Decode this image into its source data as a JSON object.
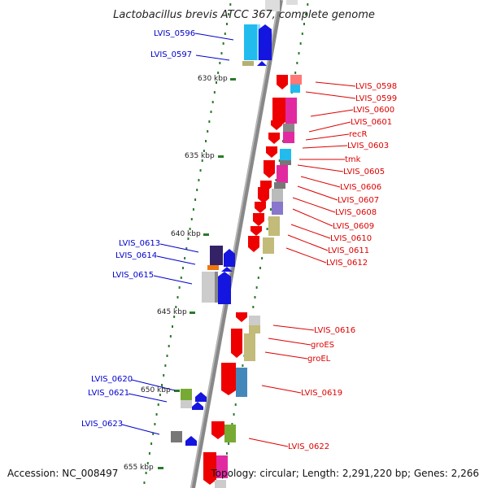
{
  "title": "Lactobacillus brevis ATCC 367, complete genome",
  "footer": {
    "accession": "Accession: NC_008497",
    "summary": "Topology: circular; Length: 2,291,220 bp; Genes: 2,266"
  },
  "scale_labels": [
    "630 kbp",
    "635 kbp",
    "640 kbp",
    "645 kbp",
    "650 kbp",
    "655 kbp"
  ],
  "colors": {
    "forward_label": "#0000cc",
    "reverse_label": "#dd0000",
    "backbone": "#888888",
    "ticks": "#2a7a2a"
  },
  "genes_left": [
    "LVIS_0596",
    "LVIS_0597",
    "LVIS_0613",
    "LVIS_0614",
    "LVIS_0615",
    "LVIS_0620",
    "LVIS_0621",
    "LVIS_0623"
  ],
  "genes_right": [
    "LVIS_0598",
    "LVIS_0599",
    "LVIS_0600",
    "LVIS_0601",
    "recR",
    "LVIS_0603",
    "tmk",
    "LVIS_0605",
    "LVIS_0606",
    "LVIS_0607",
    "LVIS_0608",
    "LVIS_0609",
    "LVIS_0610",
    "LVIS_0611",
    "LVIS_0612",
    "LVIS_0616",
    "groES",
    "groEL",
    "LVIS_0619",
    "LVIS_0622"
  ]
}
